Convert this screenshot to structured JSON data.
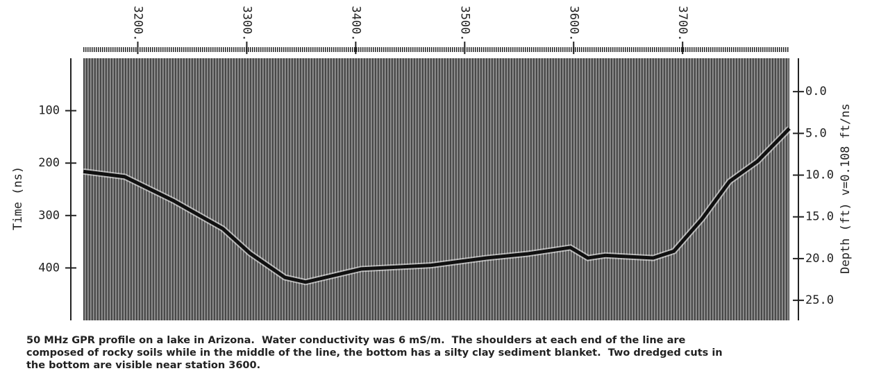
{
  "chart_data": {
    "type": "line",
    "x_ticks_top": true,
    "xlim": [
      3150,
      3798
    ],
    "xticks": [
      {
        "value": 3200,
        "label": "3200."
      },
      {
        "value": 3300,
        "label": "3300."
      },
      {
        "value": 3400,
        "label": "3400."
      },
      {
        "value": 3500,
        "label": "3500."
      },
      {
        "value": 3600,
        "label": "3600."
      },
      {
        "value": 3700,
        "label": "3700."
      }
    ],
    "ylabel": "Time (ns)",
    "ylim": [
      0,
      500
    ],
    "yticks": [
      100,
      200,
      300,
      400
    ],
    "y2label": "Depth (ft) v=0.108 ft/ns",
    "y2lim": [
      -4,
      27.4
    ],
    "y2ticks": [
      {
        "value": 0,
        "label": "0.0"
      },
      {
        "value": 5,
        "label": "5.0"
      },
      {
        "value": 10,
        "label": "10.0"
      },
      {
        "value": 15,
        "label": "15.0"
      },
      {
        "value": 20,
        "label": "20.0"
      },
      {
        "value": 25,
        "label": "25.0"
      }
    ],
    "x": [
      3150,
      3188,
      3233,
      3278,
      3303,
      3335,
      3354,
      3405,
      3469,
      3520,
      3558,
      3584,
      3597,
      3613,
      3629,
      3673,
      3692,
      3718,
      3743,
      3769,
      3798
    ],
    "values": [
      216,
      226,
      272,
      325,
      372,
      418,
      427,
      402,
      395,
      381,
      373,
      365,
      361,
      381,
      376,
      381,
      368,
      306,
      235,
      196,
      134
    ],
    "color": "#111111",
    "caption": [
      "50 MHz GPR profile on a lake in Arizona.  Water conductivity was 6 mS/m.  The shoulders at each end of the line are",
      "composed of rocky soils while in the middle of the line, the bottom has a silty clay sediment blanket.  Two dredged cuts in",
      "the bottom are visible near station 3600."
    ]
  }
}
